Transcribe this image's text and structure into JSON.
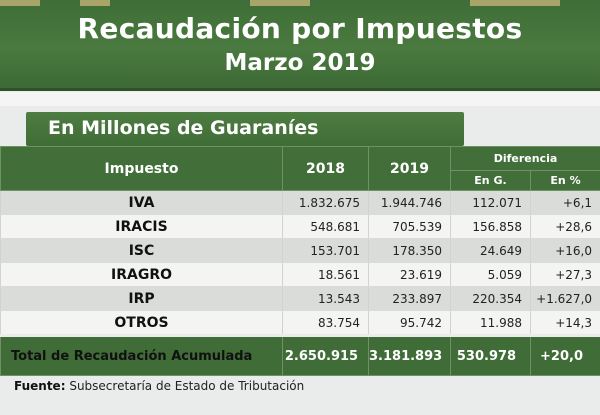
{
  "header": {
    "title": "Recaudación por Impuestos",
    "subtitle": "Marzo 2019",
    "accent_color": "#426f39"
  },
  "units_label": "En Millones de Guaraníes",
  "table": {
    "col_tax": "Impuesto",
    "col_2018": "2018",
    "col_2019": "2019",
    "col_diff": "Diferencia",
    "col_diff_g": "En G.",
    "col_diff_pct": "En %",
    "rows": [
      {
        "name": "IVA",
        "v2018": "1.832.675",
        "v2019": "1.944.746",
        "diff": "112.071",
        "pct": "+6,1"
      },
      {
        "name": "IRACIS",
        "v2018": "548.681",
        "v2019": "705.539",
        "diff": "156.858",
        "pct": "+28,6"
      },
      {
        "name": "ISC",
        "v2018": "153.701",
        "v2019": "178.350",
        "diff": "24.649",
        "pct": "+16,0"
      },
      {
        "name": "IRAGRO",
        "v2018": "18.561",
        "v2019": "23.619",
        "diff": "5.059",
        "pct": "+27,3"
      },
      {
        "name": "IRP",
        "v2018": "13.543",
        "v2019": "233.897",
        "diff": "220.354",
        "pct": "+1.627,0"
      },
      {
        "name": "OTROS",
        "v2018": "83.754",
        "v2019": "95.742",
        "diff": "11.988",
        "pct": "+14,3"
      }
    ],
    "total": {
      "name": "Total de Recaudación Acumulada",
      "v2018": "2.650.915",
      "v2019": "3.181.893",
      "diff": "530.978",
      "pct": "+20,0"
    }
  },
  "source": {
    "label": "Fuente:",
    "text": "Subsecretaría de Estado de Tributación"
  }
}
